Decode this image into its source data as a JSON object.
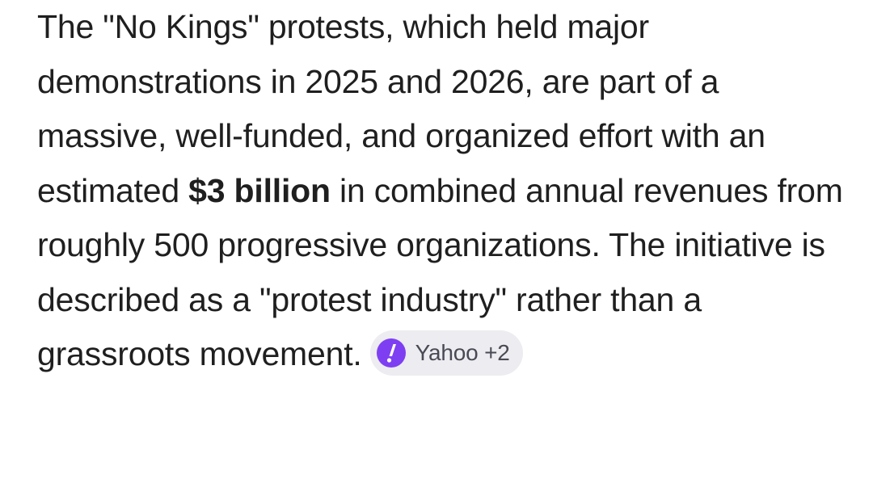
{
  "answer": {
    "part1": "The \"No Kings\" protests, which held major demonstrations in 2025 and 2026, are part of a massive, well-funded, and organized effort with an estimated ",
    "bold": "$3 billion",
    "part2": " in combined annual revenues from roughly 500 progressive organizations. The initiative is described as a \"protest industry\" rather than a grassroots movement."
  },
  "source_chip": {
    "icon": "yahoo-exclamation-icon",
    "label": "Yahoo +2",
    "icon_color": "#7e3ff2",
    "background": "#ececf1"
  }
}
